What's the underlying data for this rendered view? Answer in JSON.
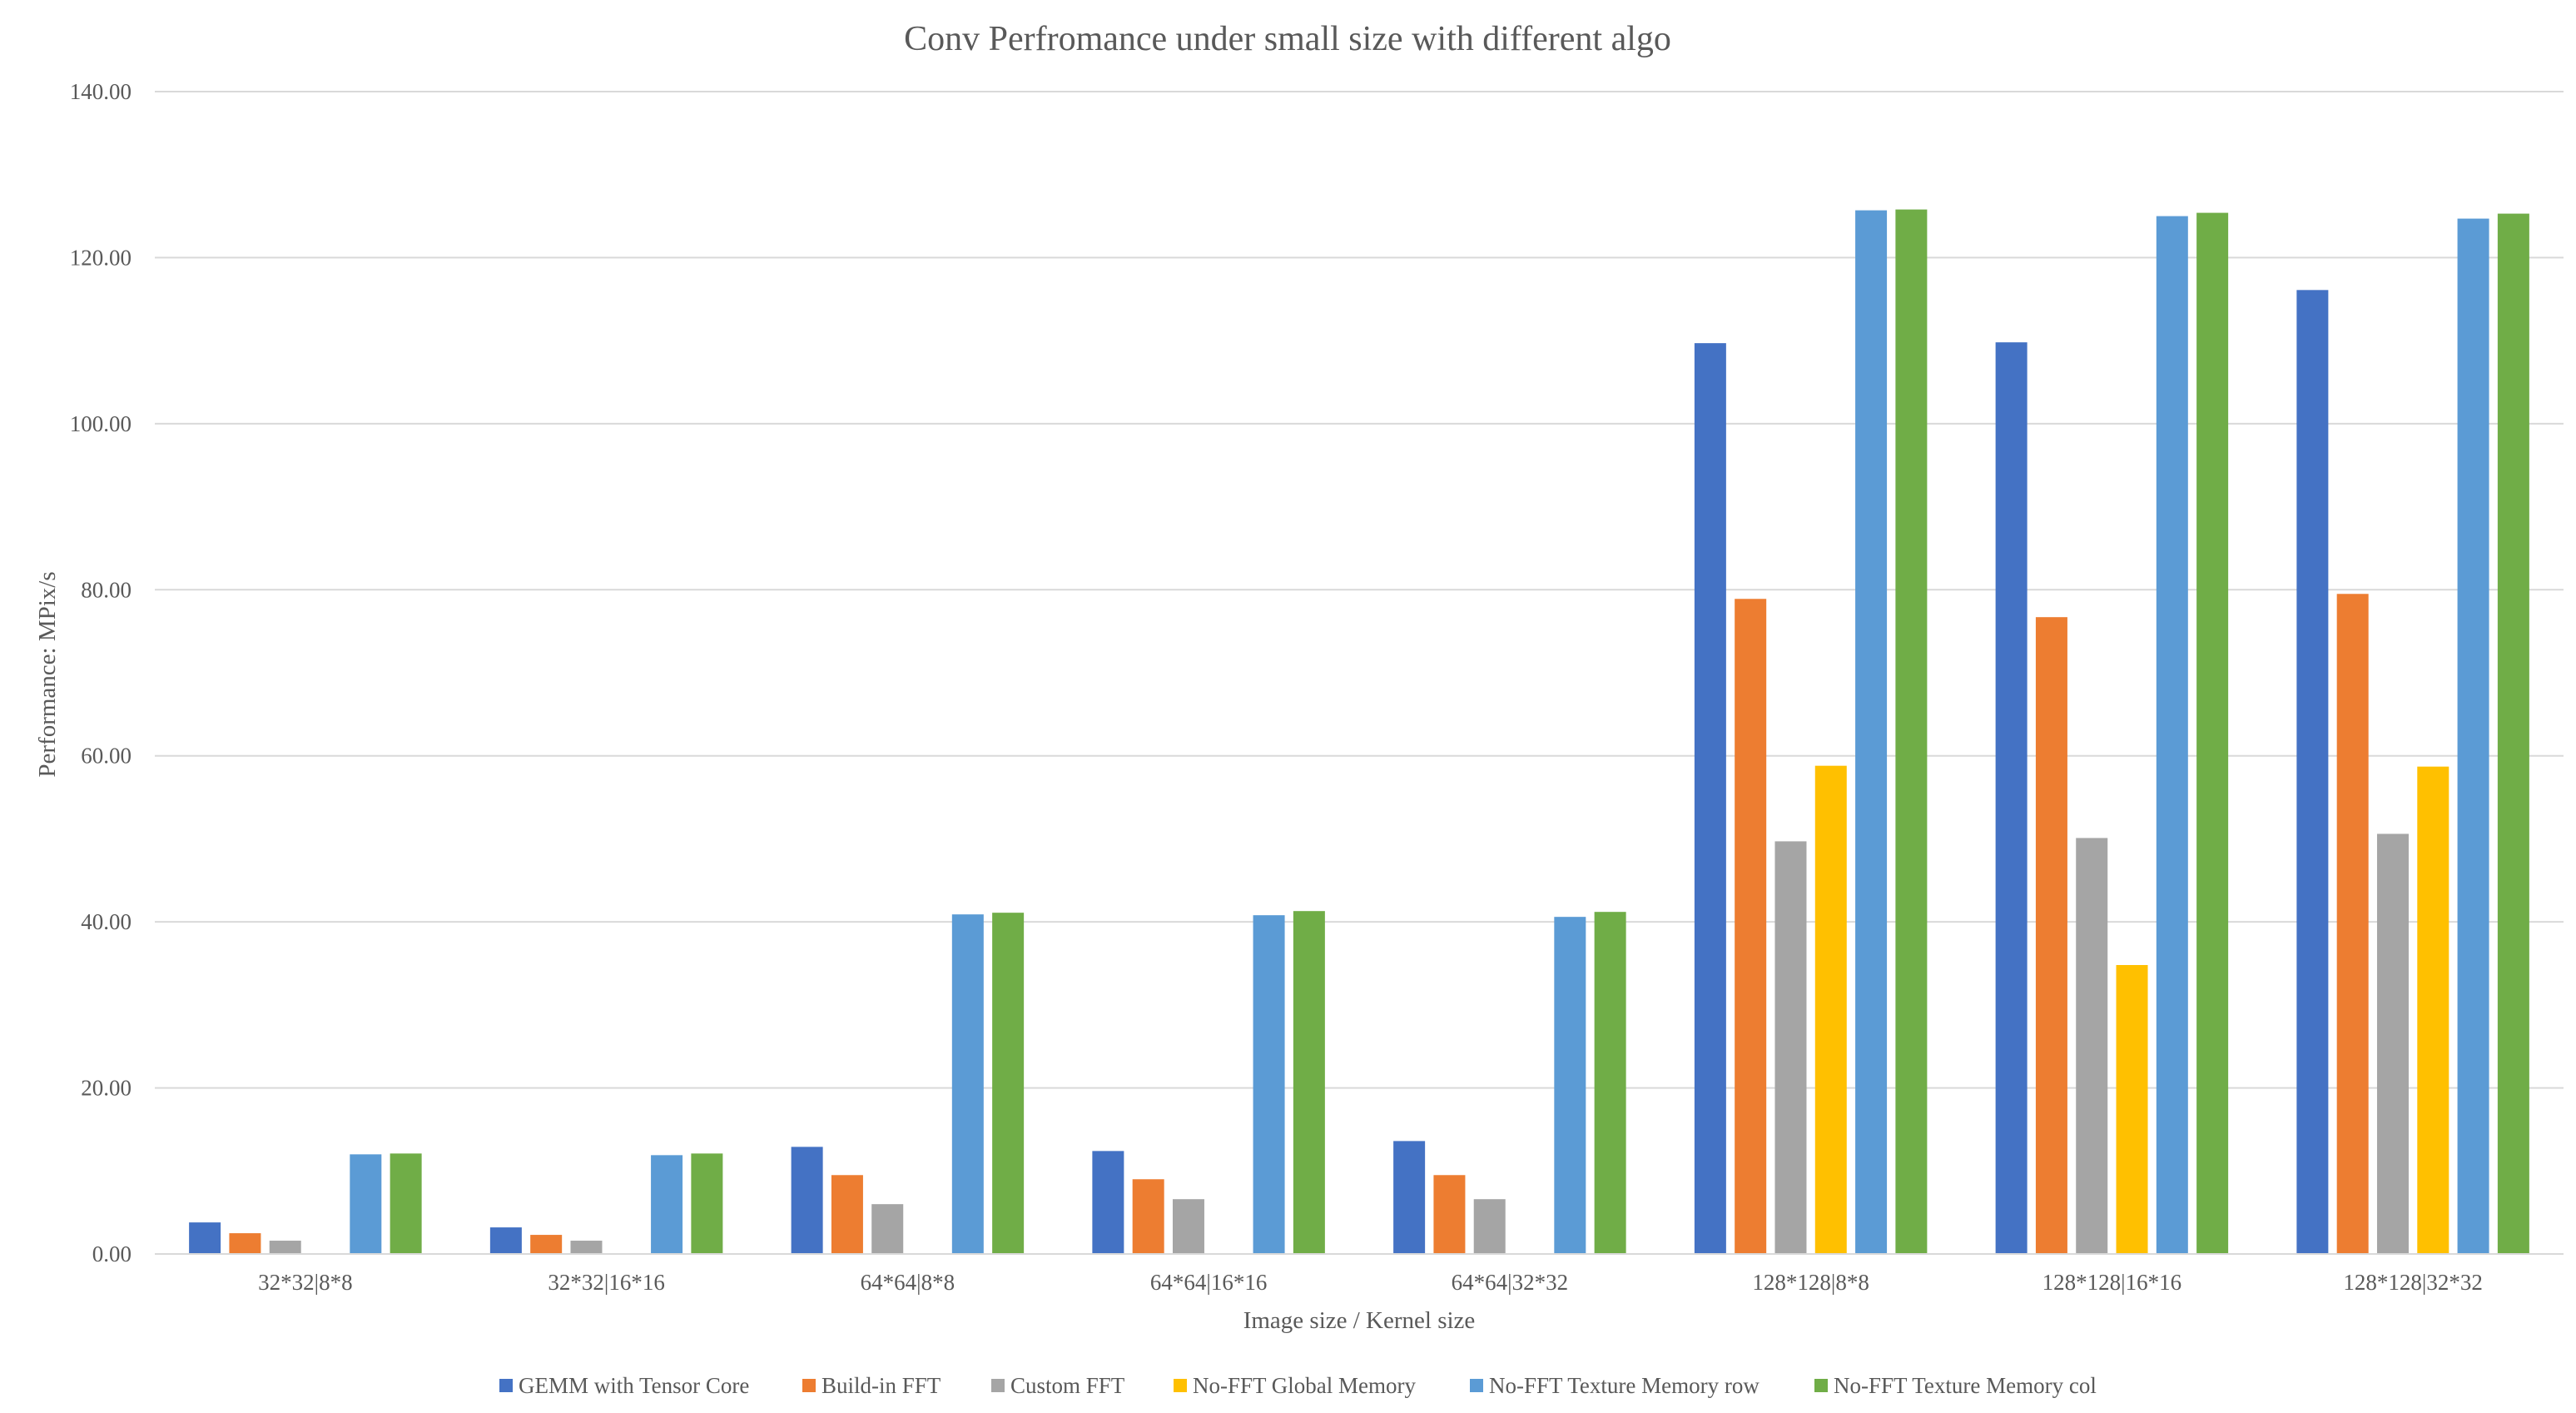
{
  "chart_data": {
    "type": "bar",
    "title": "Conv Perfromance under small size with different algo",
    "xlabel": "Image size / Kernel size",
    "ylabel": "Performance: MPix/s",
    "ylim": [
      0,
      140
    ],
    "yticks": [
      "0.00",
      "20.00",
      "40.00",
      "60.00",
      "80.00",
      "100.00",
      "120.00",
      "140.00"
    ],
    "grid": true,
    "legend_position": "bottom",
    "categories": [
      "32*32|8*8",
      "32*32|16*16",
      "64*64|8*8",
      "64*64|16*16",
      "64*64|32*32",
      "128*128|8*8",
      "128*128|16*16",
      "128*128|32*32"
    ],
    "series": [
      {
        "name": "GEMM with Tensor Core",
        "color": "#4472C4",
        "values": [
          3.8,
          3.2,
          12.9,
          12.4,
          13.6,
          109.7,
          109.8,
          116.1
        ]
      },
      {
        "name": "Build-in FFT",
        "color": "#ED7D31",
        "values": [
          2.5,
          2.3,
          9.5,
          9.0,
          9.5,
          78.9,
          76.7,
          79.5
        ]
      },
      {
        "name": "Custom FFT",
        "color": "#A5A5A5",
        "values": [
          1.6,
          1.6,
          6.0,
          6.6,
          6.6,
          49.7,
          50.1,
          50.6
        ]
      },
      {
        "name": "No-FFT Global Memory",
        "color": "#FFC000",
        "values": [
          null,
          null,
          null,
          null,
          null,
          58.8,
          34.8,
          58.7
        ]
      },
      {
        "name": "No-FFT Texture Memory row",
        "color": "#5B9BD5",
        "values": [
          12.0,
          11.9,
          40.9,
          40.8,
          40.6,
          125.7,
          125.0,
          124.7
        ]
      },
      {
        "name": "No-FFT Texture Memory col",
        "color": "#70AD47",
        "values": [
          12.1,
          12.1,
          41.1,
          41.3,
          41.2,
          125.8,
          125.4,
          125.3
        ]
      }
    ]
  }
}
